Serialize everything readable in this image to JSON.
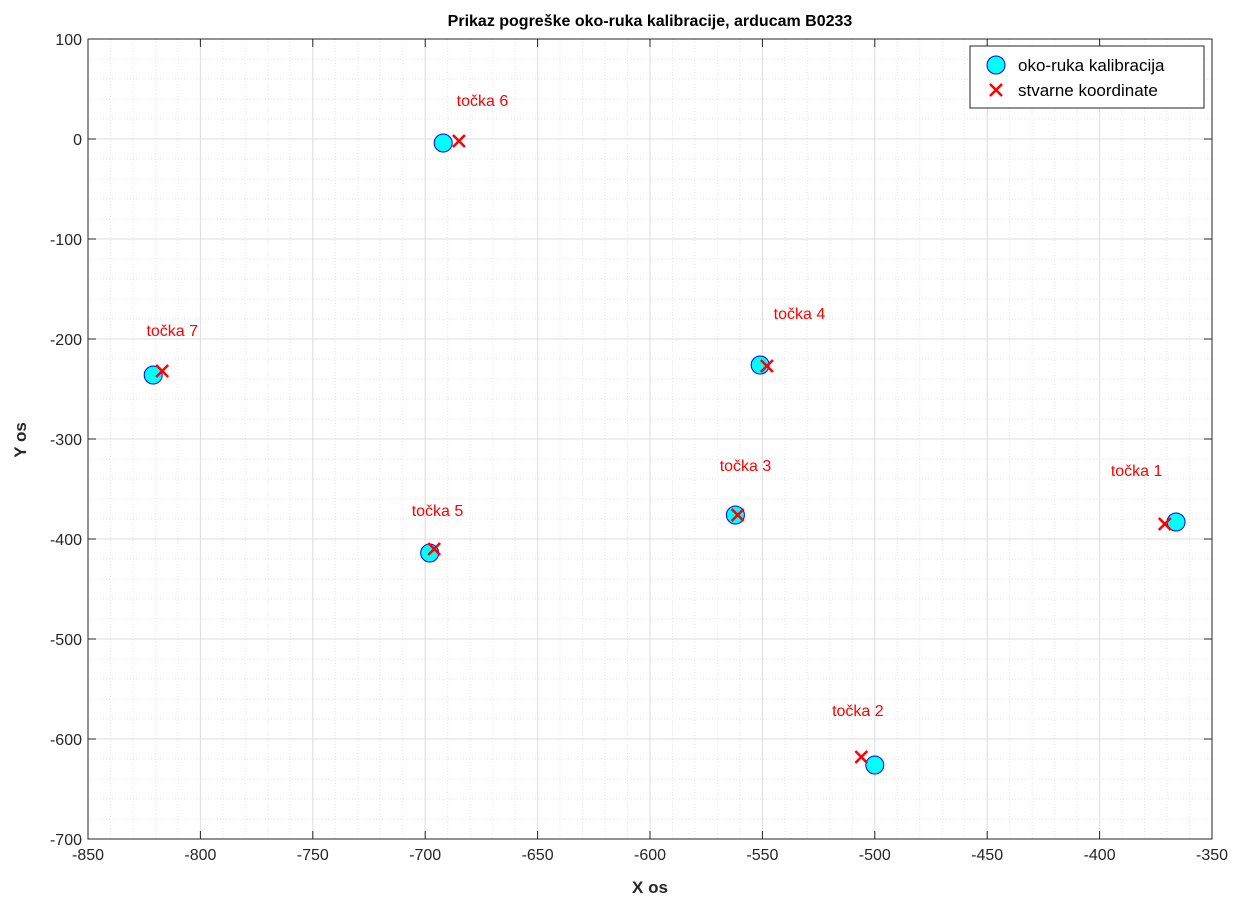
{
  "chart_data": {
    "type": "scatter",
    "title": "Prikaz pogreške oko-ruka kalibracije, arducam B0233",
    "xlabel": "X os",
    "ylabel": "Y os",
    "xlim": [
      -850,
      -350
    ],
    "ylim": [
      -700,
      100
    ],
    "xticks": [
      -850,
      -800,
      -750,
      -700,
      -650,
      -600,
      -550,
      -500,
      -450,
      -400,
      -350
    ],
    "yticks": [
      100,
      0,
      -100,
      -200,
      -300,
      -400,
      -500,
      -600,
      -700
    ],
    "grid": true,
    "minor_grid": true,
    "legend_position": "top-right",
    "series": [
      {
        "name": "oko-ruka kalibracija",
        "marker": "circle",
        "color": "#00ffff",
        "edge_color": "#0000ff",
        "x": [
          -366,
          -500,
          -562,
          -551,
          -698,
          -692,
          -821
        ],
        "y": [
          -383,
          -626,
          -376,
          -226,
          -414,
          -4,
          -236
        ]
      },
      {
        "name": "stvarne koordinate",
        "marker": "x",
        "color": "#ff0000",
        "x": [
          -371,
          -506,
          -561,
          -548,
          -696,
          -685,
          -817
        ],
        "y": [
          -385,
          -618,
          -376,
          -227,
          -410,
          -2,
          -232
        ]
      }
    ],
    "annotations": [
      {
        "text": "točka 1",
        "x": -395,
        "y": -337
      },
      {
        "text": "točka 2",
        "x": -519,
        "y": -577
      },
      {
        "text": "točka 3",
        "x": -569,
        "y": -332
      },
      {
        "text": "točka 4",
        "x": -545,
        "y": -180
      },
      {
        "text": "točka 5",
        "x": -706,
        "y": -377
      },
      {
        "text": "točka 6",
        "x": -686,
        "y": 33
      },
      {
        "text": "točka 7",
        "x": -824,
        "y": -197
      }
    ],
    "annotation_color": "#ff0000"
  }
}
